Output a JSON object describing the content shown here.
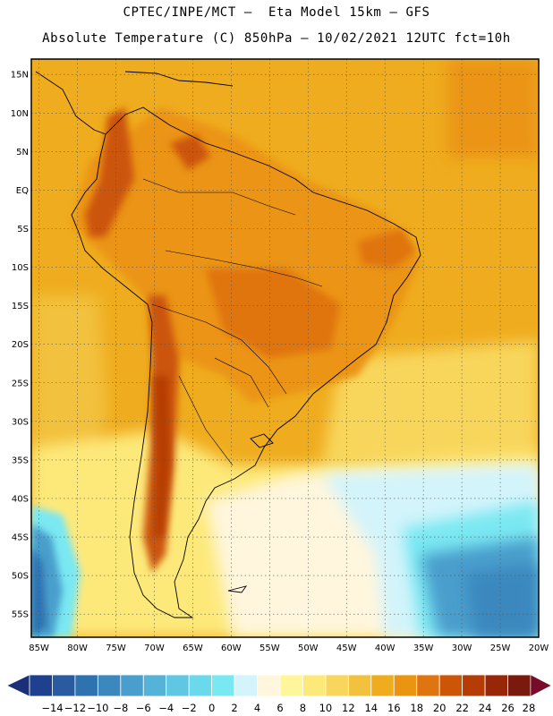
{
  "header": {
    "title_line1": "CPTEC/INPE/MCT –  Eta Model 15km – GFS",
    "title_line2": "Absolute Temperature (C) 850hPa – 10/02/2021 12UTC fct=10h"
  },
  "map": {
    "lat_labels": [
      "15N",
      "10N",
      "5N",
      "EQ",
      "5S",
      "10S",
      "15S",
      "20S",
      "25S",
      "30S",
      "35S",
      "40S",
      "45S",
      "50S",
      "55S"
    ],
    "lat_values": [
      15,
      10,
      5,
      0,
      -5,
      -10,
      -15,
      -20,
      -25,
      -30,
      -35,
      -40,
      -45,
      -50,
      -55
    ],
    "lon_labels": [
      "85W",
      "80W",
      "75W",
      "70W",
      "65W",
      "60W",
      "55W",
      "50W",
      "45W",
      "40W",
      "35W",
      "30W",
      "25W",
      "20W"
    ],
    "lon_values": [
      -85,
      -80,
      -75,
      -70,
      -65,
      -60,
      -55,
      -50,
      -45,
      -40,
      -35,
      -30,
      -25,
      -20
    ],
    "lon_range": [
      -86,
      -20
    ],
    "lat_range": [
      -58,
      17
    ]
  },
  "colorbar": {
    "labels": [
      "-14",
      "-12",
      "-10",
      "-8",
      "-6",
      "-4",
      "-2",
      "0",
      "2",
      "4",
      "6",
      "8",
      "10",
      "12",
      "14",
      "16",
      "18",
      "20",
      "22",
      "24",
      "26",
      "28"
    ],
    "colors": [
      "#1f3f8f",
      "#2a5aa0",
      "#2f72b0",
      "#3b88bf",
      "#4a9ecc",
      "#55b2d8",
      "#5fc6e3",
      "#6bd9ec",
      "#7ae8f2",
      "#d3f4fb",
      "#fff6dd",
      "#fff59a",
      "#fde97a",
      "#f8d65c",
      "#f2c13e",
      "#efac1e",
      "#eb9412",
      "#e07410",
      "#cc5508",
      "#b63c06",
      "#98270a",
      "#7a1a0e"
    ],
    "under_color": "#1a2f78",
    "over_color": "#780a2a"
  }
}
